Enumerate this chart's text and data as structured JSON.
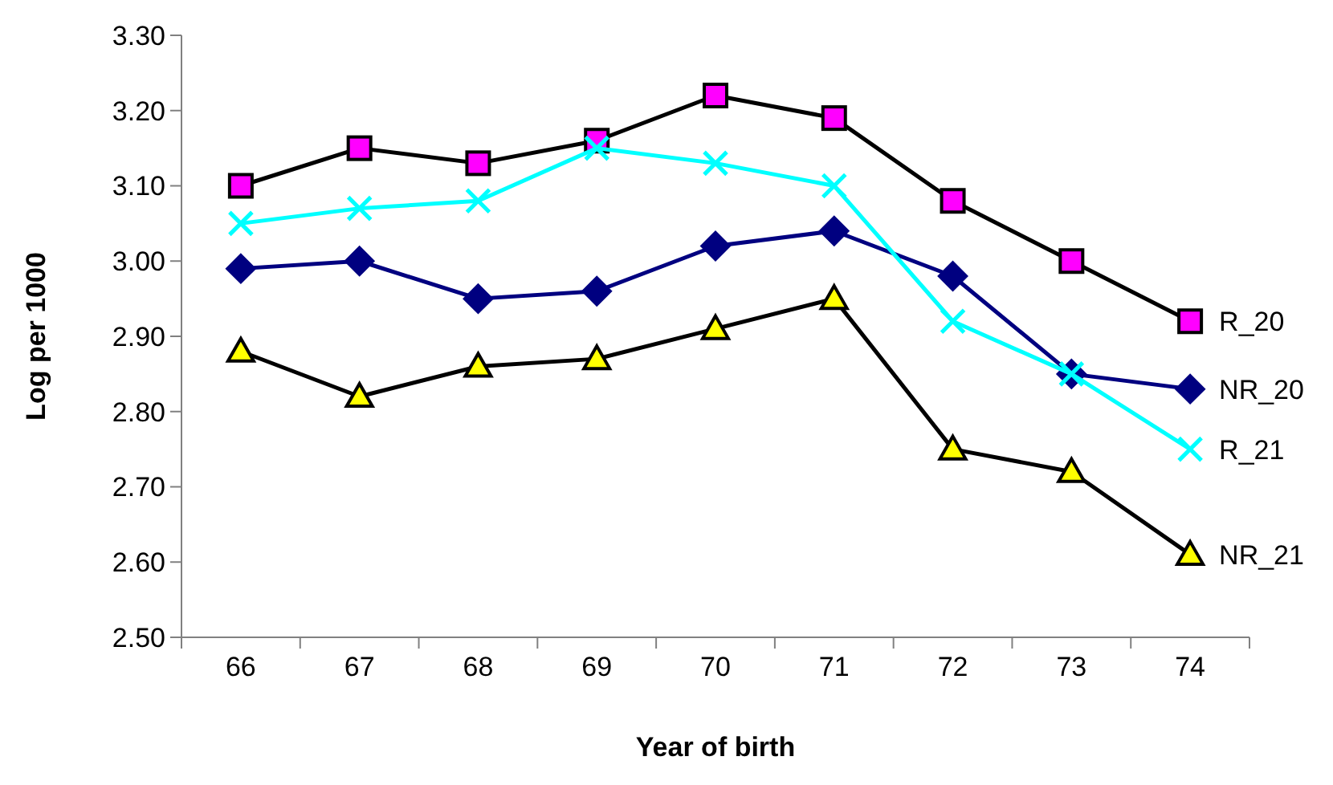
{
  "chart_data": {
    "type": "line",
    "xlabel": "Year of birth",
    "ylabel": "Log per 1000",
    "categories": [
      "66",
      "67",
      "68",
      "69",
      "70",
      "71",
      "72",
      "73",
      "74"
    ],
    "ylim": [
      2.5,
      3.3
    ],
    "yticks": [
      {
        "value": 2.5,
        "label": "2.50"
      },
      {
        "value": 2.6,
        "label": "2.60"
      },
      {
        "value": 2.7,
        "label": "2.70"
      },
      {
        "value": 2.8,
        "label": "2.80"
      },
      {
        "value": 2.9,
        "label": "2.90"
      },
      {
        "value": 3.0,
        "label": "3.00"
      },
      {
        "value": 3.1,
        "label": "3.10"
      },
      {
        "value": 3.2,
        "label": "3.20"
      },
      {
        "value": 3.3,
        "label": "3.30"
      }
    ],
    "grid": false,
    "legend": false,
    "series": [
      {
        "name": "R_20",
        "color": "#000000",
        "colors": [
          "#ff00ff",
          "#ff00ff",
          "#ff00ff",
          "#ff00ff",
          "#ff00ff",
          "#ff00ff",
          "#ff00ff",
          "#ff00ff",
          "#ff00ff"
        ],
        "marker": "square",
        "values": [
          3.1,
          3.15,
          3.13,
          3.16,
          3.22,
          3.19,
          3.08,
          3.0,
          2.92
        ]
      },
      {
        "name": "NR_20",
        "color": "#000080",
        "marker": "diamond",
        "values": [
          2.99,
          3.0,
          2.95,
          2.96,
          3.02,
          3.04,
          2.98,
          2.85,
          2.83
        ]
      },
      {
        "name": "R_21",
        "color": "#00ffff",
        "marker": "cross",
        "values": [
          3.05,
          3.07,
          3.08,
          3.15,
          3.13,
          3.1,
          2.92,
          2.85,
          2.75
        ]
      },
      {
        "name": "NR_21",
        "color": "#000000",
        "colors": [
          "#ffff00",
          "#ffff00",
          "#ffff00",
          "#ffff00",
          "#ffff00",
          "#ffff00",
          "#ffff00",
          "#ffff00",
          "#ffff00"
        ],
        "marker": "triangle",
        "values": [
          2.88,
          2.82,
          2.86,
          2.87,
          2.91,
          2.95,
          2.75,
          2.72,
          2.61
        ]
      }
    ]
  }
}
